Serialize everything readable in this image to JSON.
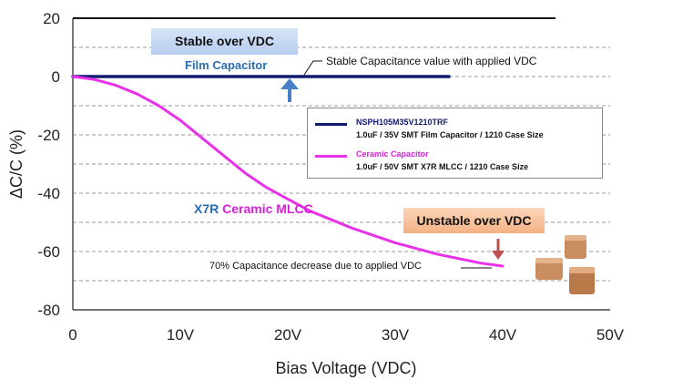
{
  "chart_data": {
    "type": "line",
    "xlabel": "Bias Voltage (VDC)",
    "ylabel": "ΔC/C (%)",
    "xlim": [
      0,
      50
    ],
    "ylim": [
      -80,
      20
    ],
    "x_ticks": [
      "0",
      "10V",
      "20V",
      "30V",
      "40V",
      "50V"
    ],
    "y_ticks": [
      "20",
      "0",
      "-20",
      "-40",
      "-60",
      "-80"
    ],
    "grid": "horizontal dashed",
    "legend_position": "right",
    "series": [
      {
        "name": "NSPH105M35V1210TRF",
        "description": "1.0uF  / 35V SMT Film Capacitor / 1210 Case Size",
        "color": "#101a6e",
        "x": [
          0,
          5,
          10,
          15,
          20,
          25,
          30,
          35
        ],
        "y": [
          0,
          0,
          0,
          0,
          0,
          0,
          0,
          0
        ]
      },
      {
        "name": "Ceramic Capacitor",
        "description": "1.0uF  / 50V SMT X7R MLCC / 1210 Case Size",
        "color": "#e832e8",
        "x": [
          0,
          2,
          4,
          6,
          8,
          10,
          12,
          14,
          16,
          18,
          20,
          22,
          24,
          26,
          28,
          30,
          32,
          34,
          36,
          38,
          40
        ],
        "y": [
          0,
          -1,
          -3,
          -6,
          -10,
          -15,
          -21,
          -27,
          -33,
          -38,
          -42,
          -46,
          -49,
          -52,
          -54.5,
          -57,
          -59,
          -61,
          -62.5,
          -64,
          -65
        ]
      }
    ],
    "annotations": {
      "stable_box": "Stable over VDC",
      "film_label": "Film Capacitor",
      "stable_note": "Stable Capacitance value with applied VDC",
      "x7r_prefix": "X7R",
      "x7r_suffix": "Ceramic MLCC",
      "unstable_box": "Unstable over VDC",
      "decrease_note": "70% Capacitance decrease due to applied VDC"
    }
  },
  "colors": {
    "axis": "#222222",
    "grid": "#999999",
    "top_border": "#111111",
    "film_label": "#2a6cb4",
    "stable_arrow": "#4a80c8",
    "unstable_arrow": "#c0504d"
  },
  "icons": [
    "capacitor-product-image-top",
    "capacitor-product-image-bottom"
  ]
}
